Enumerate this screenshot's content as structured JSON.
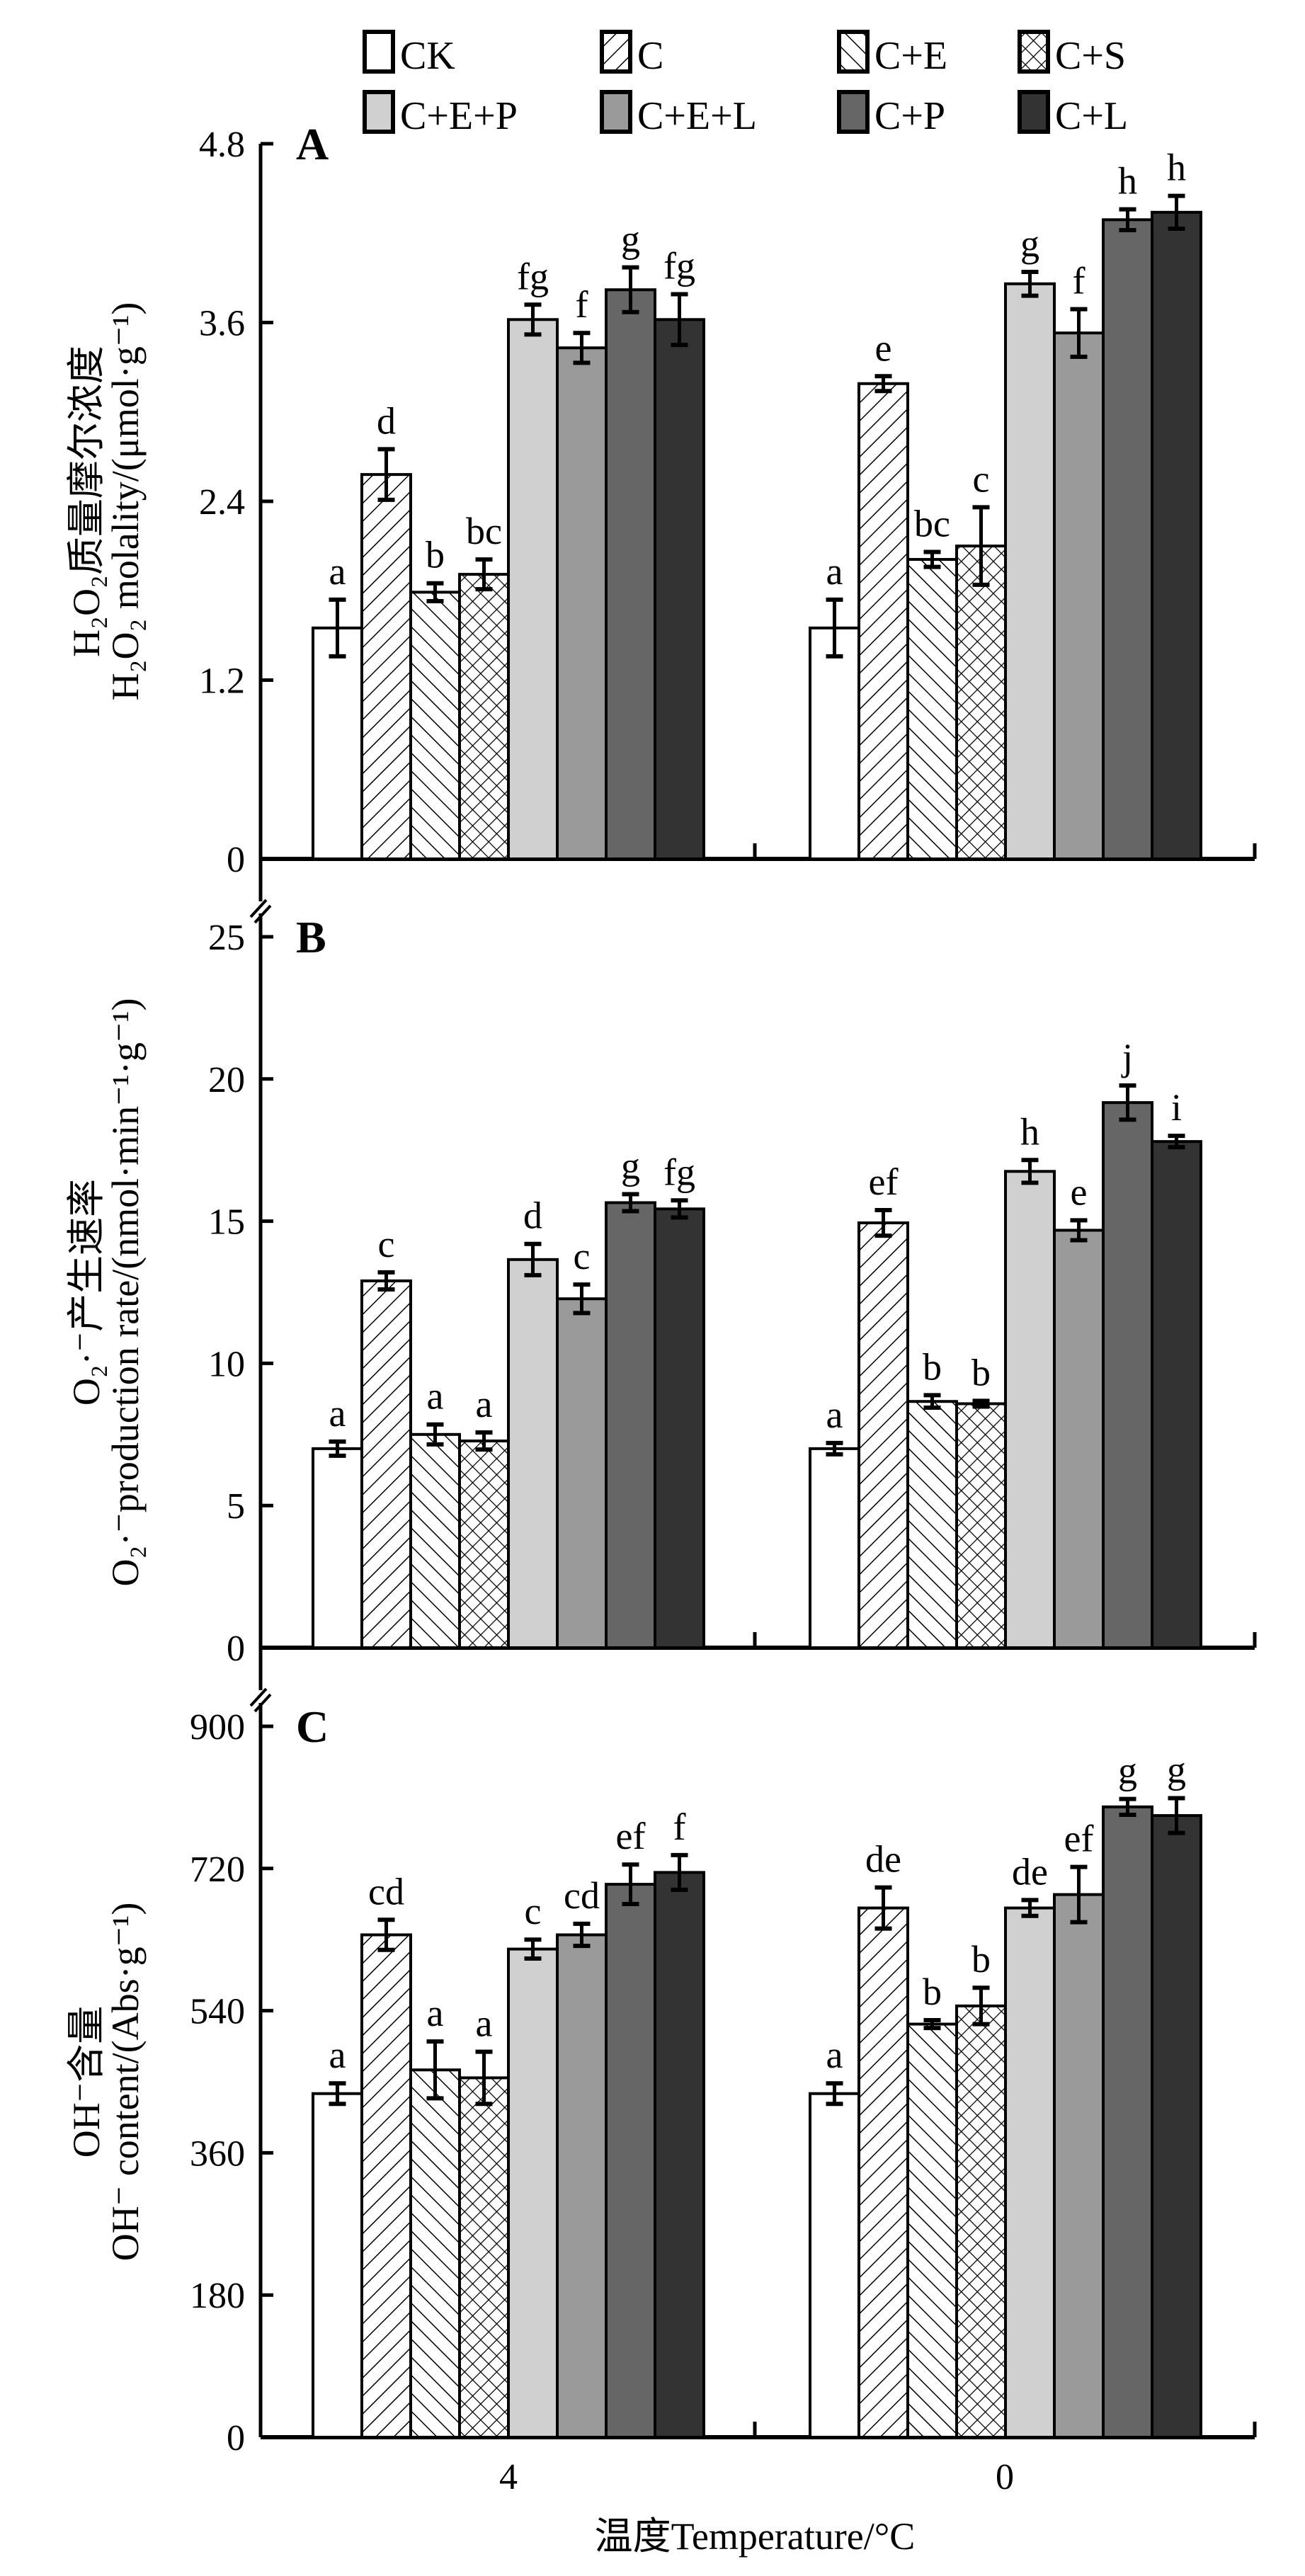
{
  "chart_data": [
    {
      "type": "bar",
      "panel": "A",
      "title": "",
      "ylabel_cn": "H₂O₂质量摩尔浓度",
      "ylabel_en": "H₂O₂ molality/(μmol·g⁻¹)",
      "xlabel": "温度Temperature/°C",
      "categories": [
        "4",
        "0"
      ],
      "ylim": [
        0,
        4.8
      ],
      "yticks": [
        "0",
        "1.2",
        "2.4",
        "3.6",
        "4.8"
      ],
      "series": [
        {
          "name": "CK",
          "values": [
            1.55,
            1.55
          ],
          "errors": [
            0.19,
            0.19
          ],
          "letters": [
            "a",
            "a"
          ]
        },
        {
          "name": "C",
          "values": [
            2.58,
            3.19
          ],
          "errors": [
            0.17,
            0.05
          ],
          "letters": [
            "d",
            "e"
          ]
        },
        {
          "name": "C+E",
          "values": [
            1.79,
            2.01
          ],
          "errors": [
            0.06,
            0.05
          ],
          "letters": [
            "b",
            "bc"
          ]
        },
        {
          "name": "C+S",
          "values": [
            1.91,
            2.1
          ],
          "errors": [
            0.1,
            0.26
          ],
          "letters": [
            "bc",
            "c"
          ]
        },
        {
          "name": "C+E+P",
          "values": [
            3.62,
            3.86
          ],
          "errors": [
            0.1,
            0.08
          ],
          "letters": [
            "fg",
            "g"
          ]
        },
        {
          "name": "C+E+L",
          "values": [
            3.43,
            3.53
          ],
          "errors": [
            0.1,
            0.16
          ],
          "letters": [
            "f",
            "f"
          ]
        },
        {
          "name": "C+P",
          "values": [
            3.82,
            4.29
          ],
          "errors": [
            0.15,
            0.07
          ],
          "letters": [
            "g",
            "h"
          ]
        },
        {
          "name": "C+L",
          "values": [
            3.62,
            4.34
          ],
          "errors": [
            0.17,
            0.11
          ],
          "letters": [
            "fg",
            "h"
          ]
        }
      ]
    },
    {
      "type": "bar",
      "panel": "B",
      "title": "",
      "ylabel_cn": "O₂·⁻产生速率",
      "ylabel_en": "O₂·⁻production rate/(nmol·min⁻¹·g⁻¹)",
      "xlabel": "温度Temperature/°C",
      "categories": [
        "4",
        "0"
      ],
      "ylim": [
        0,
        25
      ],
      "yticks": [
        "0",
        "5",
        "10",
        "15",
        "20",
        "25"
      ],
      "series": [
        {
          "name": "CK",
          "values": [
            7.0,
            7.0
          ],
          "errors": [
            0.25,
            0.2
          ],
          "letters": [
            "a",
            "a"
          ]
        },
        {
          "name": "C",
          "values": [
            12.9,
            14.94
          ],
          "errors": [
            0.3,
            0.45
          ],
          "letters": [
            "c",
            "ef"
          ]
        },
        {
          "name": "C+E",
          "values": [
            7.5,
            8.66
          ],
          "errors": [
            0.35,
            0.22
          ],
          "letters": [
            "a",
            "b"
          ]
        },
        {
          "name": "C+S",
          "values": [
            7.27,
            8.58
          ],
          "errors": [
            0.3,
            0.1
          ],
          "letters": [
            "a",
            "b"
          ]
        },
        {
          "name": "C+E+P",
          "values": [
            13.65,
            16.75
          ],
          "errors": [
            0.55,
            0.4
          ],
          "letters": [
            "d",
            "h"
          ]
        },
        {
          "name": "C+E+L",
          "values": [
            12.27,
            14.68
          ],
          "errors": [
            0.5,
            0.35
          ],
          "letters": [
            "c",
            "e"
          ]
        },
        {
          "name": "C+P",
          "values": [
            15.65,
            19.17
          ],
          "errors": [
            0.3,
            0.6
          ],
          "letters": [
            "g",
            "j"
          ]
        },
        {
          "name": "C+L",
          "values": [
            15.43,
            17.8
          ],
          "errors": [
            0.3,
            0.2
          ],
          "letters": [
            "fg",
            "i"
          ]
        }
      ]
    },
    {
      "type": "bar",
      "panel": "C",
      "title": "",
      "ylabel_cn": "OH⁻含量",
      "ylabel_en": "OH⁻ content/(Abs·g⁻¹)",
      "xlabel": "温度Temperature/°C",
      "categories": [
        "4",
        "0"
      ],
      "ylim": [
        0,
        900
      ],
      "yticks": [
        "0",
        "180",
        "360",
        "540",
        "720",
        "900"
      ],
      "series": [
        {
          "name": "CK",
          "values": [
            435,
            435
          ],
          "errors": [
            13,
            13
          ],
          "letters": [
            "a",
            "a"
          ]
        },
        {
          "name": "C",
          "values": [
            636,
            670
          ],
          "errors": [
            19,
            26
          ],
          "letters": [
            "cd",
            "de"
          ]
        },
        {
          "name": "C+E",
          "values": [
            465,
            523
          ],
          "errors": [
            36,
            5
          ],
          "letters": [
            "a",
            "b"
          ]
        },
        {
          "name": "C+S",
          "values": [
            455,
            546
          ],
          "errors": [
            33,
            23
          ],
          "letters": [
            "a",
            "b"
          ]
        },
        {
          "name": "C+E+P",
          "values": [
            618,
            670
          ],
          "errors": [
            12,
            10
          ],
          "letters": [
            "c",
            "de"
          ]
        },
        {
          "name": "C+E+L",
          "values": [
            636,
            687
          ],
          "errors": [
            14,
            35
          ],
          "letters": [
            "cd",
            "ef"
          ]
        },
        {
          "name": "C+P",
          "values": [
            700,
            798
          ],
          "errors": [
            25,
            10
          ],
          "letters": [
            "ef",
            "g"
          ]
        },
        {
          "name": "C+L",
          "values": [
            715,
            787
          ],
          "errors": [
            22,
            22
          ],
          "letters": [
            "f",
            "g"
          ]
        }
      ]
    }
  ],
  "legend": [
    {
      "label": "CK",
      "fill": "#ffffff",
      "pattern": "none"
    },
    {
      "label": "C",
      "fill": "#ffffff",
      "pattern": "forward-diagonal"
    },
    {
      "label": "C+E",
      "fill": "#ffffff",
      "pattern": "back-diagonal"
    },
    {
      "label": "C+S",
      "fill": "#ffffff",
      "pattern": "crosshatch"
    },
    {
      "label": "C+E+P",
      "fill": "#d0d0d0",
      "pattern": "none"
    },
    {
      "label": "C+E+L",
      "fill": "#9a9a9a",
      "pattern": "none"
    },
    {
      "label": "C+P",
      "fill": "#666666",
      "pattern": "none"
    },
    {
      "label": "C+L",
      "fill": "#333333",
      "pattern": "none"
    }
  ],
  "x_axis": {
    "tick_labels": [
      "4",
      "0"
    ],
    "title": "温度Temperature/°C"
  }
}
